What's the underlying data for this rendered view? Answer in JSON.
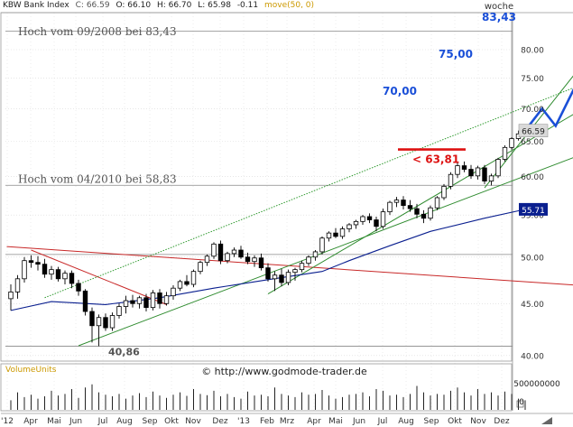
{
  "header": {
    "symbol": "KBW Bank Index",
    "close": "C: 66.59",
    "open": "O: 66.10",
    "high": "H: 66.70",
    "low": "L: 65.98",
    "change": "-0.11",
    "indicator": "move(50, 0)",
    "timeframe": "woche"
  },
  "colors": {
    "background": "#ffffff",
    "grid": "#d8d8d8",
    "axis_text": "#333333",
    "candle": "#000000",
    "moving_average": "#0a1f8f",
    "upper_channel": "#2e9a2e",
    "support_line": "#2e8b2e",
    "downtrend_line": "#c82828",
    "forecast": "#1a4fd8",
    "target_label": "#1a4fd8",
    "stop_line": "#dd1111",
    "annotation": "#555555",
    "indicator_label": "#cc9900",
    "price_box": "#d9d9d9",
    "ma_box": "#0a1f8f"
  },
  "annotations": {
    "high_2008": "Hoch vom 09/2008 bei 83,43",
    "high_2010": "Hoch vom 04/2010 bei 58,83",
    "low": "40,86",
    "target_83": "83,43",
    "target_75": "75,00",
    "target_70": "70,00",
    "stop": "< 63,81",
    "copyright": "©  http://www.godmode-trader.de"
  },
  "price_box": {
    "value": "66.59"
  },
  "ma_box": {
    "value": "55.71"
  },
  "volume_panel": {
    "label": "VolumeUnits",
    "tick_label": "500000000",
    "tick_label_zero": "0"
  },
  "chart_data": {
    "type": "candlestick",
    "timeframe": "weekly",
    "yscale": "log",
    "ylim": [
      39.5,
      87
    ],
    "yticks": [
      40,
      45,
      50,
      55,
      60,
      65,
      70,
      75,
      80
    ],
    "ytick_labels": [
      "40.00",
      "45.00",
      "50.00",
      "55.00",
      "60.00",
      "65.00",
      "70.00",
      "75.00",
      "80.00"
    ],
    "xticks": [
      "'12",
      "Apr",
      "Mai",
      "Jun",
      "Jul",
      "Aug",
      "Sep",
      "Okt",
      "Nov",
      "Dez",
      "'13",
      "Feb",
      "Mrz",
      "Apr",
      "Mai",
      "Jun",
      "Jul",
      "Aug",
      "Sep",
      "Okt",
      "Nov",
      "Dez"
    ],
    "horizontal_levels": [
      83.43,
      58.83,
      50.3,
      40.86
    ],
    "candles": [
      {
        "o": 45.5,
        "h": 47.0,
        "l": 44.3,
        "c": 46.2
      },
      {
        "o": 46.2,
        "h": 48.0,
        "l": 45.5,
        "c": 47.6
      },
      {
        "o": 47.6,
        "h": 50.0,
        "l": 47.2,
        "c": 49.6
      },
      {
        "o": 49.6,
        "h": 50.2,
        "l": 48.8,
        "c": 49.4
      },
      {
        "o": 49.4,
        "h": 50.1,
        "l": 48.5,
        "c": 49.2
      },
      {
        "o": 49.2,
        "h": 49.8,
        "l": 47.7,
        "c": 48.1
      },
      {
        "o": 48.1,
        "h": 49.0,
        "l": 47.5,
        "c": 48.6
      },
      {
        "o": 48.6,
        "h": 48.9,
        "l": 47.3,
        "c": 47.6
      },
      {
        "o": 47.6,
        "h": 48.5,
        "l": 47.0,
        "c": 48.2
      },
      {
        "o": 48.2,
        "h": 48.5,
        "l": 46.6,
        "c": 47.1
      },
      {
        "o": 47.1,
        "h": 47.5,
        "l": 45.8,
        "c": 46.3
      },
      {
        "o": 46.3,
        "h": 46.5,
        "l": 43.8,
        "c": 44.2
      },
      {
        "o": 44.2,
        "h": 44.6,
        "l": 41.2,
        "c": 42.8
      },
      {
        "o": 42.8,
        "h": 43.9,
        "l": 40.86,
        "c": 43.6
      },
      {
        "o": 43.6,
        "h": 44.0,
        "l": 42.3,
        "c": 42.6
      },
      {
        "o": 42.6,
        "h": 44.1,
        "l": 42.3,
        "c": 43.8
      },
      {
        "o": 43.8,
        "h": 45.0,
        "l": 43.5,
        "c": 44.7
      },
      {
        "o": 44.7,
        "h": 45.8,
        "l": 44.0,
        "c": 45.3
      },
      {
        "o": 45.3,
        "h": 45.9,
        "l": 44.6,
        "c": 45.0
      },
      {
        "o": 45.0,
        "h": 45.8,
        "l": 44.5,
        "c": 45.6
      },
      {
        "o": 45.6,
        "h": 46.0,
        "l": 44.2,
        "c": 44.6
      },
      {
        "o": 44.6,
        "h": 46.4,
        "l": 44.3,
        "c": 46.1
      },
      {
        "o": 46.1,
        "h": 46.5,
        "l": 44.5,
        "c": 45.0
      },
      {
        "o": 45.0,
        "h": 46.2,
        "l": 44.8,
        "c": 45.8
      },
      {
        "o": 45.8,
        "h": 46.9,
        "l": 45.4,
        "c": 46.6
      },
      {
        "o": 46.6,
        "h": 47.5,
        "l": 46.3,
        "c": 47.3
      },
      {
        "o": 47.3,
        "h": 48.0,
        "l": 46.8,
        "c": 47.0
      },
      {
        "o": 47.0,
        "h": 48.6,
        "l": 46.7,
        "c": 48.4
      },
      {
        "o": 48.4,
        "h": 49.6,
        "l": 48.1,
        "c": 49.4
      },
      {
        "o": 49.4,
        "h": 50.3,
        "l": 49.0,
        "c": 50.1
      },
      {
        "o": 50.1,
        "h": 51.7,
        "l": 49.8,
        "c": 51.5
      },
      {
        "o": 51.5,
        "h": 51.9,
        "l": 49.2,
        "c": 49.6
      },
      {
        "o": 49.6,
        "h": 50.6,
        "l": 49.3,
        "c": 50.4
      },
      {
        "o": 50.4,
        "h": 51.1,
        "l": 50.0,
        "c": 50.8
      },
      {
        "o": 50.8,
        "h": 51.3,
        "l": 49.8,
        "c": 50.0
      },
      {
        "o": 50.0,
        "h": 50.5,
        "l": 49.2,
        "c": 49.5
      },
      {
        "o": 49.5,
        "h": 50.2,
        "l": 48.9,
        "c": 49.9
      },
      {
        "o": 49.9,
        "h": 50.4,
        "l": 48.5,
        "c": 48.8
      },
      {
        "o": 48.8,
        "h": 49.3,
        "l": 47.3,
        "c": 47.6
      },
      {
        "o": 47.6,
        "h": 48.4,
        "l": 46.3,
        "c": 48.0
      },
      {
        "o": 48.0,
        "h": 48.7,
        "l": 46.8,
        "c": 47.2
      },
      {
        "o": 47.2,
        "h": 48.6,
        "l": 46.9,
        "c": 48.3
      },
      {
        "o": 48.3,
        "h": 48.8,
        "l": 47.4,
        "c": 48.6
      },
      {
        "o": 48.6,
        "h": 49.6,
        "l": 48.3,
        "c": 49.3
      },
      {
        "o": 49.3,
        "h": 50.2,
        "l": 49.0,
        "c": 50.0
      },
      {
        "o": 50.0,
        "h": 50.8,
        "l": 49.6,
        "c": 50.6
      },
      {
        "o": 50.6,
        "h": 52.4,
        "l": 50.3,
        "c": 52.2
      },
      {
        "o": 52.2,
        "h": 53.0,
        "l": 51.8,
        "c": 52.8
      },
      {
        "o": 52.8,
        "h": 53.4,
        "l": 52.2,
        "c": 52.4
      },
      {
        "o": 52.4,
        "h": 53.6,
        "l": 52.1,
        "c": 53.3
      },
      {
        "o": 53.3,
        "h": 54.0,
        "l": 52.9,
        "c": 53.8
      },
      {
        "o": 53.8,
        "h": 54.4,
        "l": 53.3,
        "c": 54.2
      },
      {
        "o": 54.2,
        "h": 55.0,
        "l": 53.8,
        "c": 54.8
      },
      {
        "o": 54.8,
        "h": 55.2,
        "l": 54.0,
        "c": 54.4
      },
      {
        "o": 54.4,
        "h": 54.8,
        "l": 53.0,
        "c": 53.6
      },
      {
        "o": 53.6,
        "h": 55.8,
        "l": 53.3,
        "c": 55.4
      },
      {
        "o": 55.4,
        "h": 56.8,
        "l": 55.0,
        "c": 56.6
      },
      {
        "o": 56.6,
        "h": 57.3,
        "l": 56.0,
        "c": 56.9
      },
      {
        "o": 56.9,
        "h": 57.4,
        "l": 55.7,
        "c": 56.2
      },
      {
        "o": 56.2,
        "h": 56.9,
        "l": 55.4,
        "c": 55.8
      },
      {
        "o": 55.8,
        "h": 56.4,
        "l": 54.6,
        "c": 55.1
      },
      {
        "o": 55.1,
        "h": 55.6,
        "l": 54.0,
        "c": 54.6
      },
      {
        "o": 54.6,
        "h": 56.2,
        "l": 54.3,
        "c": 55.9
      },
      {
        "o": 55.9,
        "h": 57.4,
        "l": 55.6,
        "c": 57.2
      },
      {
        "o": 57.2,
        "h": 59.0,
        "l": 56.9,
        "c": 58.7
      },
      {
        "o": 58.7,
        "h": 60.6,
        "l": 58.3,
        "c": 60.3
      },
      {
        "o": 60.3,
        "h": 61.9,
        "l": 59.8,
        "c": 61.5
      },
      {
        "o": 61.5,
        "h": 62.1,
        "l": 60.6,
        "c": 61.0
      },
      {
        "o": 61.0,
        "h": 61.6,
        "l": 59.7,
        "c": 60.1
      },
      {
        "o": 60.1,
        "h": 61.5,
        "l": 59.6,
        "c": 61.2
      },
      {
        "o": 61.2,
        "h": 61.6,
        "l": 59.0,
        "c": 59.4
      },
      {
        "o": 59.4,
        "h": 60.4,
        "l": 58.8,
        "c": 60.1
      },
      {
        "o": 60.1,
        "h": 62.6,
        "l": 59.8,
        "c": 62.4
      },
      {
        "o": 62.4,
        "h": 64.4,
        "l": 62.1,
        "c": 64.1
      },
      {
        "o": 64.1,
        "h": 65.6,
        "l": 63.8,
        "c": 65.4
      },
      {
        "o": 65.4,
        "h": 66.6,
        "l": 65.1,
        "c": 66.1
      },
      {
        "o": 66.1,
        "h": 66.7,
        "l": 65.98,
        "c": 66.59
      }
    ],
    "moving_average": {
      "name": "move(50, 0)",
      "values": [
        [
          0,
          44.3
        ],
        [
          6,
          45.2
        ],
        [
          14,
          44.9
        ],
        [
          22,
          45.6
        ],
        [
          30,
          46.6
        ],
        [
          38,
          47.5
        ],
        [
          46,
          48.4
        ],
        [
          50,
          49.6
        ],
        [
          56,
          51.3
        ],
        [
          62,
          53.0
        ],
        [
          70,
          54.6
        ],
        [
          76,
          55.71
        ]
      ]
    },
    "trendlines": [
      {
        "name": "red-downtrend-line",
        "points": [
          [
            -0.6,
            51.2
          ],
          [
            90,
            46.6
          ]
        ]
      },
      {
        "name": "red-short-downtrend-line",
        "points": [
          [
            3,
            50.8
          ],
          [
            23,
            44.9
          ]
        ]
      },
      {
        "name": "green-lower-channel-line",
        "points": [
          [
            10,
            40.9
          ],
          [
            90,
            65.2
          ]
        ]
      },
      {
        "name": "green-upper-channel-line",
        "points": [
          [
            5,
            45.6
          ],
          [
            90,
            76.5
          ]
        ]
      },
      {
        "name": "green-steep-support-line",
        "points": [
          [
            38,
            46.0
          ],
          [
            90,
            73.5
          ]
        ]
      },
      {
        "name": "green-steepest-line",
        "points": [
          [
            70,
            58.5
          ],
          [
            89,
            84.5
          ]
        ]
      }
    ],
    "forecast_path": [
      [
        76,
        66.59
      ],
      [
        78.5,
        70.0
      ],
      [
        80.5,
        67.3
      ],
      [
        84,
        75.0
      ],
      [
        87.5,
        70.2
      ]
    ],
    "forecast_projection": [
      [
        87.5,
        70.2
      ],
      [
        90.5,
        81.6
      ]
    ],
    "stop_level": 63.81,
    "volume": [
      60,
      110,
      80,
      95,
      70,
      85,
      120,
      90,
      100,
      130,
      75,
      140,
      160,
      110,
      95,
      85,
      100,
      70,
      90,
      105,
      80,
      115,
      90,
      75,
      95,
      110,
      88,
      130,
      100,
      92,
      120,
      85,
      100,
      80,
      70,
      115,
      90,
      95,
      85,
      140,
      100,
      90,
      80,
      110,
      95,
      100,
      125,
      90,
      70,
      80,
      95,
      100,
      110,
      85,
      130,
      120,
      90,
      95,
      80,
      100,
      150,
      110,
      90,
      100,
      95,
      120,
      140,
      110,
      90,
      130,
      100,
      110,
      90,
      115,
      100,
      70,
      60
    ]
  }
}
